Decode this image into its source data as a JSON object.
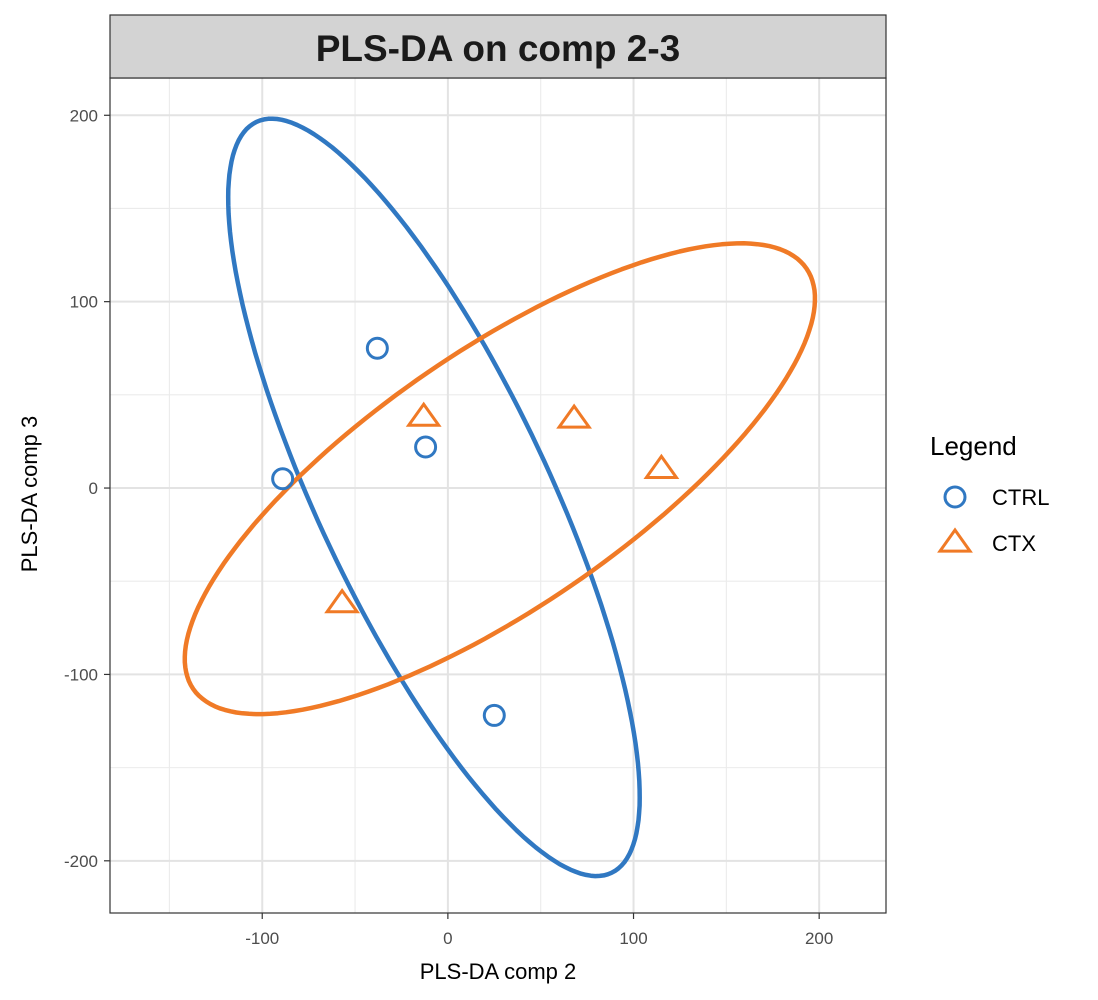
{
  "chart_data": {
    "type": "scatter",
    "title": "PLS-DA on comp 2-3",
    "xlabel": "PLS-DA comp 2",
    "ylabel": "PLS-DA comp 3",
    "xlim": [
      -182,
      236
    ],
    "ylim": [
      -228,
      220
    ],
    "x_ticks": [
      -100,
      0,
      100,
      200
    ],
    "y_ticks": [
      200,
      100,
      0,
      -100,
      -200
    ],
    "x_tick_labels": [
      "-100",
      "0",
      "100",
      "200"
    ],
    "y_tick_labels": [
      "200",
      "100",
      "0",
      "-100",
      "-200"
    ],
    "grid": true,
    "legend": {
      "title": "Legend",
      "placement": "right"
    },
    "series": [
      {
        "name": "CTRL",
        "marker": "circle",
        "color": "#3078C2",
        "points": [
          [
            -38,
            75
          ],
          [
            -12,
            22
          ],
          [
            -89,
            5
          ],
          [
            25,
            -122
          ]
        ],
        "ellipse": {
          "cx": -7.5,
          "cy": -5,
          "rx": 223,
          "ry": 62,
          "angle_deg": -64.6
        }
      },
      {
        "name": "CTX",
        "marker": "triangle",
        "color": "#F07A26",
        "points": [
          [
            -13,
            38
          ],
          [
            68,
            37
          ],
          [
            115,
            10
          ],
          [
            -57,
            -62
          ]
        ],
        "ellipse": {
          "cx": 28,
          "cy": 5,
          "rx": 200,
          "ry": 69,
          "angle_deg": 34.3
        }
      }
    ]
  }
}
